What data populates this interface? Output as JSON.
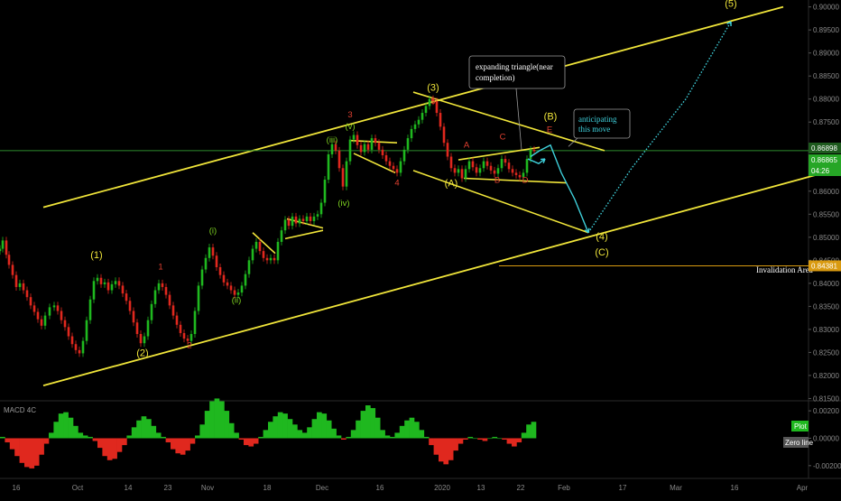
{
  "colors": {
    "background": "#000000",
    "candle_up": "#1fb81f",
    "candle_down": "#e0281e",
    "channel": "#f0e53a",
    "wave_major": "#f0e53a",
    "wave_minor_red": "#e04030",
    "wave_minor_green": "#7ed321",
    "projection": "#3fd1dc",
    "price_line": "#2e8b2e",
    "invalidation": "#d99a10",
    "macd_up": "#1fb81f",
    "macd_down": "#e0281e"
  },
  "chart_data": {
    "type": "candlestick",
    "price_axis": {
      "ticks": [
        "0.90000",
        "0.89500",
        "0.89000",
        "0.88500",
        "0.88000",
        "0.87500",
        "0.87000",
        "0.86500",
        "0.86000",
        "0.85500",
        "0.85000",
        "0.84500",
        "0.84000",
        "0.83500",
        "0.83000",
        "0.82500",
        "0.82000",
        "0.81500"
      ],
      "ylim": [
        0.8145,
        0.9015
      ]
    },
    "time_axis": {
      "ticks": [
        "16",
        "Oct",
        "14",
        "23",
        "Nov",
        "18",
        "Dec",
        "16",
        "2020",
        "13",
        "22",
        "Feb",
        "17",
        "Mar",
        "16",
        "Apr"
      ]
    },
    "price_labels": {
      "current_high": "0.86898",
      "current": "0.86865",
      "countdown": "04:26",
      "invalidation": "0.84381"
    },
    "candles": [
      {
        "t": 0,
        "p": 0.8475
      },
      {
        "t": 3,
        "p": 0.8493
      },
      {
        "t": 7,
        "p": 0.8462
      },
      {
        "t": 10,
        "p": 0.844
      },
      {
        "t": 14,
        "p": 0.8418
      },
      {
        "t": 18,
        "p": 0.8392
      },
      {
        "t": 22,
        "p": 0.84
      },
      {
        "t": 26,
        "p": 0.8385
      },
      {
        "t": 30,
        "p": 0.837
      },
      {
        "t": 34,
        "p": 0.8352
      },
      {
        "t": 38,
        "p": 0.8338
      },
      {
        "t": 42,
        "p": 0.8322
      },
      {
        "t": 46,
        "p": 0.8308
      },
      {
        "t": 50,
        "p": 0.833
      },
      {
        "t": 55,
        "p": 0.8348
      },
      {
        "t": 60,
        "p": 0.8352
      },
      {
        "t": 64,
        "p": 0.834
      },
      {
        "t": 68,
        "p": 0.832
      },
      {
        "t": 72,
        "p": 0.8305
      },
      {
        "t": 76,
        "p": 0.8285
      },
      {
        "t": 80,
        "p": 0.8268
      },
      {
        "t": 84,
        "p": 0.8255
      },
      {
        "t": 88,
        "p": 0.8248
      },
      {
        "t": 92,
        "p": 0.8275
      },
      {
        "t": 96,
        "p": 0.832
      },
      {
        "t": 100,
        "p": 0.8365
      },
      {
        "t": 104,
        "p": 0.8405
      },
      {
        "t": 108,
        "p": 0.8412
      },
      {
        "t": 112,
        "p": 0.8398
      },
      {
        "t": 116,
        "p": 0.8402
      },
      {
        "t": 120,
        "p": 0.8385
      },
      {
        "t": 124,
        "p": 0.8398
      },
      {
        "t": 128,
        "p": 0.8405
      },
      {
        "t": 132,
        "p": 0.8395
      },
      {
        "t": 136,
        "p": 0.8378
      },
      {
        "t": 140,
        "p": 0.8362
      },
      {
        "t": 144,
        "p": 0.834
      },
      {
        "t": 148,
        "p": 0.8315
      },
      {
        "t": 152,
        "p": 0.829
      },
      {
        "t": 156,
        "p": 0.827
      },
      {
        "t": 160,
        "p": 0.8285
      },
      {
        "t": 164,
        "p": 0.832
      },
      {
        "t": 168,
        "p": 0.8355
      },
      {
        "t": 172,
        "p": 0.8385
      },
      {
        "t": 176,
        "p": 0.84
      },
      {
        "t": 180,
        "p": 0.8392
      },
      {
        "t": 184,
        "p": 0.8375
      },
      {
        "t": 188,
        "p": 0.8352
      },
      {
        "t": 192,
        "p": 0.833
      },
      {
        "t": 196,
        "p": 0.831
      },
      {
        "t": 200,
        "p": 0.8292
      },
      {
        "t": 204,
        "p": 0.828
      },
      {
        "t": 208,
        "p": 0.8275
      },
      {
        "t": 212,
        "p": 0.829
      },
      {
        "t": 216,
        "p": 0.834
      },
      {
        "t": 220,
        "p": 0.8395
      },
      {
        "t": 224,
        "p": 0.843
      },
      {
        "t": 228,
        "p": 0.8455
      },
      {
        "t": 232,
        "p": 0.8478
      },
      {
        "t": 236,
        "p": 0.846
      },
      {
        "t": 240,
        "p": 0.8435
      },
      {
        "t": 244,
        "p": 0.8418
      },
      {
        "t": 248,
        "p": 0.8402
      },
      {
        "t": 252,
        "p": 0.8395
      },
      {
        "t": 256,
        "p": 0.8385
      },
      {
        "t": 260,
        "p": 0.8375
      },
      {
        "t": 264,
        "p": 0.838
      },
      {
        "t": 268,
        "p": 0.8395
      },
      {
        "t": 272,
        "p": 0.842
      },
      {
        "t": 276,
        "p": 0.845
      },
      {
        "t": 280,
        "p": 0.8475
      },
      {
        "t": 284,
        "p": 0.849
      },
      {
        "t": 288,
        "p": 0.847
      },
      {
        "t": 292,
        "p": 0.8455
      },
      {
        "t": 296,
        "p": 0.845
      },
      {
        "t": 300,
        "p": 0.8455
      },
      {
        "t": 304,
        "p": 0.845
      },
      {
        "t": 308,
        "p": 0.849
      },
      {
        "t": 312,
        "p": 0.8515
      },
      {
        "t": 316,
        "p": 0.8538
      },
      {
        "t": 320,
        "p": 0.8525
      },
      {
        "t": 324,
        "p": 0.8545
      },
      {
        "t": 328,
        "p": 0.853
      },
      {
        "t": 332,
        "p": 0.854
      },
      {
        "t": 336,
        "p": 0.8535
      },
      {
        "t": 340,
        "p": 0.8545
      },
      {
        "t": 344,
        "p": 0.8535
      },
      {
        "t": 348,
        "p": 0.8545
      },
      {
        "t": 352,
        "p": 0.855
      },
      {
        "t": 356,
        "p": 0.8575
      },
      {
        "t": 360,
        "p": 0.8625
      },
      {
        "t": 364,
        "p": 0.868
      },
      {
        "t": 368,
        "p": 0.8702
      },
      {
        "t": 372,
        "p": 0.8688
      },
      {
        "t": 376,
        "p": 0.865
      },
      {
        "t": 380,
        "p": 0.861
      },
      {
        "t": 384,
        "p": 0.8665
      },
      {
        "t": 388,
        "p": 0.8712
      },
      {
        "t": 392,
        "p": 0.8722
      },
      {
        "t": 396,
        "p": 0.87
      },
      {
        "t": 400,
        "p": 0.8685
      },
      {
        "t": 404,
        "p": 0.8702
      },
      {
        "t": 408,
        "p": 0.869
      },
      {
        "t": 412,
        "p": 0.8715
      },
      {
        "t": 416,
        "p": 0.8705
      },
      {
        "t": 420,
        "p": 0.869
      },
      {
        "t": 424,
        "p": 0.8678
      },
      {
        "t": 428,
        "p": 0.8665
      },
      {
        "t": 432,
        "p": 0.8655
      },
      {
        "t": 436,
        "p": 0.8648
      },
      {
        "t": 440,
        "p": 0.864
      },
      {
        "t": 444,
        "p": 0.8665
      },
      {
        "t": 448,
        "p": 0.869
      },
      {
        "t": 452,
        "p": 0.8715
      },
      {
        "t": 456,
        "p": 0.8735
      },
      {
        "t": 460,
        "p": 0.8745
      },
      {
        "t": 464,
        "p": 0.8755
      },
      {
        "t": 468,
        "p": 0.877
      },
      {
        "t": 472,
        "p": 0.8785
      },
      {
        "t": 476,
        "p": 0.88
      },
      {
        "t": 480,
        "p": 0.8795
      },
      {
        "t": 484,
        "p": 0.877
      },
      {
        "t": 488,
        "p": 0.874
      },
      {
        "t": 492,
        "p": 0.8705
      },
      {
        "t": 496,
        "p": 0.8675
      },
      {
        "t": 500,
        "p": 0.865
      },
      {
        "t": 504,
        "p": 0.864
      },
      {
        "t": 508,
        "p": 0.8648
      },
      {
        "t": 512,
        "p": 0.8628
      },
      {
        "t": 516,
        "p": 0.8648
      },
      {
        "t": 520,
        "p": 0.8665
      },
      {
        "t": 524,
        "p": 0.8652
      },
      {
        "t": 528,
        "p": 0.864
      },
      {
        "t": 532,
        "p": 0.865
      },
      {
        "t": 536,
        "p": 0.8665
      },
      {
        "t": 540,
        "p": 0.8655
      },
      {
        "t": 544,
        "p": 0.8645
      },
      {
        "t": 548,
        "p": 0.8638
      },
      {
        "t": 552,
        "p": 0.865
      },
      {
        "t": 556,
        "p": 0.867
      },
      {
        "t": 560,
        "p": 0.8662
      },
      {
        "t": 564,
        "p": 0.8648
      },
      {
        "t": 568,
        "p": 0.864
      },
      {
        "t": 572,
        "p": 0.8635
      },
      {
        "t": 576,
        "p": 0.863
      },
      {
        "t": 580,
        "p": 0.864
      },
      {
        "t": 584,
        "p": 0.867
      },
      {
        "t": 588,
        "p": 0.869
      },
      {
        "t": 592,
        "p": 0.8687
      }
    ],
    "channels": {
      "upper": [
        [
          0,
          0.855
        ],
        [
          868,
          0.9
        ]
      ],
      "lower": [
        [
          0,
          0.818
        ],
        [
          932,
          0.865
        ]
      ],
      "invalidation_level": 0.8438,
      "current_price": 0.8688
    },
    "wave_labels": [
      {
        "text": "(1)",
        "t": 107,
        "p": 0.8455,
        "color": "wave_major"
      },
      {
        "text": "(2)",
        "t": 158,
        "p": 0.8242,
        "color": "wave_major"
      },
      {
        "text": "(3)",
        "t": 480,
        "p": 0.8818,
        "color": "wave_major"
      },
      {
        "text": "(A)",
        "t": 500,
        "p": 0.861,
        "color": "wave_major"
      },
      {
        "text": "(B)",
        "t": 610,
        "p": 0.8755,
        "color": "wave_major"
      },
      {
        "text": "(4)",
        "t": 667,
        "p": 0.8495,
        "color": "wave_major"
      },
      {
        "text": "(C)",
        "t": 667,
        "p": 0.846,
        "color": "wave_major"
      },
      {
        "text": "(5)",
        "t": 810,
        "p": 0.9,
        "color": "wave_major"
      },
      {
        "text": "1",
        "t": 178,
        "p": 0.843,
        "color": "wave_minor_red"
      },
      {
        "text": "2",
        "t": 210,
        "p": 0.826,
        "color": "wave_minor_red"
      },
      {
        "text": "3",
        "t": 388,
        "p": 0.876,
        "color": "wave_minor_red"
      },
      {
        "text": "4",
        "t": 440,
        "p": 0.8612,
        "color": "wave_minor_red"
      },
      {
        "text": "5",
        "t": 480,
        "p": 0.879,
        "color": "wave_minor_red"
      },
      {
        "text": "A",
        "t": 517,
        "p": 0.8695,
        "color": "wave_minor_red"
      },
      {
        "text": "B",
        "t": 551,
        "p": 0.8618,
        "color": "wave_minor_red"
      },
      {
        "text": "C",
        "t": 557,
        "p": 0.8712,
        "color": "wave_minor_red"
      },
      {
        "text": "D",
        "t": 582,
        "p": 0.8618,
        "color": "wave_minor_red"
      },
      {
        "text": "E",
        "t": 609,
        "p": 0.8728,
        "color": "wave_minor_red"
      },
      {
        "text": "(i)",
        "t": 236,
        "p": 0.8508,
        "color": "wave_minor_green"
      },
      {
        "text": "(ii)",
        "t": 262,
        "p": 0.8358,
        "color": "wave_minor_green"
      },
      {
        "text": "(iii)",
        "t": 368,
        "p": 0.8705,
        "color": "wave_minor_green"
      },
      {
        "text": "(iv)",
        "t": 381,
        "p": 0.8568,
        "color": "wave_minor_green"
      },
      {
        "text": "(v)",
        "t": 388,
        "p": 0.8735,
        "color": "wave_minor_green"
      }
    ],
    "annotations": [
      {
        "text_lines": [
          "expanding triangle(near",
          "completion)"
        ]
      },
      {
        "text_lines": [
          "anticipating",
          "this move"
        ]
      },
      {
        "text_lines": [
          "Invalidation Area"
        ]
      }
    ]
  },
  "macd": {
    "title": "MACD 4C",
    "ticks": [
      "0.00200",
      "0.00000",
      "-0.00200"
    ],
    "ylim": [
      -0.0028,
      0.0026
    ],
    "labels": {
      "plot": "Plot",
      "zero_line": "Zero line"
    },
    "histogram": [
      0.0001,
      -0.0003,
      -0.0008,
      -0.0013,
      -0.0018,
      -0.0021,
      -0.0022,
      -0.002,
      -0.0012,
      -0.0004,
      0.0004,
      0.0012,
      0.0018,
      0.0019,
      0.0015,
      0.0009,
      0.0004,
      0.0002,
      0.0001,
      -0.0002,
      -0.0007,
      -0.0013,
      -0.0016,
      -0.0015,
      -0.001,
      -0.0005,
      0.0002,
      0.0008,
      0.0013,
      0.0016,
      0.0014,
      0.0009,
      0.0004,
      0.0001,
      -0.0003,
      -0.0008,
      -0.0011,
      -0.0012,
      -0.0009,
      -0.0004,
      0.0002,
      0.001,
      0.002,
      0.0027,
      0.0029,
      0.0027,
      0.002,
      0.0011,
      0.0004,
      -0.0001,
      -0.0005,
      -0.0006,
      -0.0004,
      0.0001,
      0.0006,
      0.0012,
      0.0016,
      0.0019,
      0.0018,
      0.0014,
      0.001,
      0.0006,
      0.0004,
      0.0008,
      0.0014,
      0.0019,
      0.0018,
      0.0013,
      0.0007,
      0.0002,
      -0.0001,
      0.0001,
      0.0006,
      0.0013,
      0.002,
      0.0024,
      0.0022,
      0.0015,
      0.0006,
      0.0002,
      0.0001,
      0.0004,
      0.0009,
      0.0013,
      0.0015,
      0.0012,
      0.0006,
      0.0001,
      -0.0005,
      -0.0012,
      -0.0017,
      -0.0019,
      -0.0016,
      -0.0009,
      -0.0004,
      -0.0001,
      0.0001,
      0.0,
      -0.0001,
      -0.0002,
      0.0,
      0.0001,
      0.0,
      -0.0001,
      -0.0004,
      -0.0006,
      -0.0003,
      0.0004,
      0.001,
      0.0012
    ]
  }
}
